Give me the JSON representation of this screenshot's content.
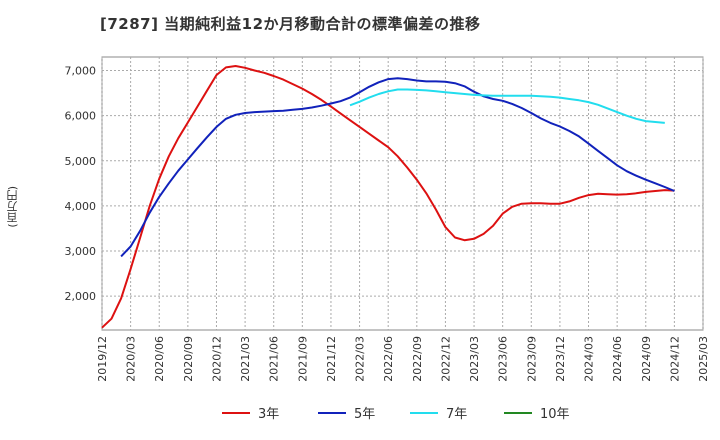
{
  "chart_data": {
    "type": "line",
    "title": "[7287]  当期純利益12か月移動合計の標準偏差の推移",
    "ylabel": "(百万円)",
    "xlabel": "",
    "ylim": [
      1250,
      7300
    ],
    "yticks": [
      2000,
      3000,
      4000,
      5000,
      6000,
      7000
    ],
    "ytick_labels": [
      "2,000",
      "3,000",
      "4,000",
      "5,000",
      "6,000",
      "7,000"
    ],
    "xlim": [
      "2019-12",
      "2025-03"
    ],
    "xticks": [
      "2019/12",
      "2020/03",
      "2020/06",
      "2020/09",
      "2020/12",
      "2021/03",
      "2021/06",
      "2021/09",
      "2021/12",
      "2022/03",
      "2022/06",
      "2022/09",
      "2022/12",
      "2023/03",
      "2023/06",
      "2023/09",
      "2023/12",
      "2024/03",
      "2024/06",
      "2024/09",
      "2024/12",
      "2025/03"
    ],
    "grid": true,
    "legend_position": "bottom",
    "series": [
      {
        "name": "3年",
        "color": "#dd1111",
        "start": "2019-12",
        "values": [
          1300,
          1500,
          1950,
          2600,
          3300,
          4000,
          4600,
          5100,
          5500,
          5850,
          6200,
          6550,
          6900,
          7070,
          7100,
          7060,
          7000,
          6950,
          6880,
          6800,
          6700,
          6600,
          6480,
          6350,
          6200,
          6050,
          5900,
          5750,
          5600,
          5450,
          5300,
          5100,
          4850,
          4580,
          4280,
          3920,
          3530,
          3300,
          3240,
          3270,
          3380,
          3560,
          3830,
          3980,
          4050,
          4060,
          4060,
          4050,
          4050,
          4100,
          4180,
          4240,
          4270,
          4260,
          4250,
          4260,
          4280,
          4310,
          4330,
          4350,
          4340
        ]
      },
      {
        "name": "5年",
        "color": "#1122bb",
        "start": "2020-02",
        "values": [
          2880,
          3100,
          3450,
          3850,
          4200,
          4500,
          4780,
          5030,
          5280,
          5520,
          5750,
          5930,
          6020,
          6060,
          6080,
          6090,
          6100,
          6110,
          6130,
          6150,
          6180,
          6220,
          6270,
          6320,
          6400,
          6520,
          6640,
          6740,
          6810,
          6830,
          6810,
          6780,
          6760,
          6760,
          6750,
          6720,
          6650,
          6530,
          6430,
          6370,
          6330,
          6260,
          6170,
          6060,
          5940,
          5840,
          5760,
          5660,
          5540,
          5380,
          5220,
          5060,
          4900,
          4770,
          4670,
          4580,
          4500,
          4420,
          4330
        ]
      },
      {
        "name": "7年",
        "color": "#22ddee",
        "start": "2022-02",
        "values": [
          6230,
          6310,
          6400,
          6480,
          6540,
          6580,
          6580,
          6570,
          6560,
          6540,
          6520,
          6500,
          6480,
          6460,
          6450,
          6440,
          6440,
          6440,
          6440,
          6440,
          6430,
          6420,
          6400,
          6370,
          6340,
          6300,
          6240,
          6160,
          6080,
          6000,
          5930,
          5880,
          5860,
          5840
        ]
      },
      {
        "name": "10年",
        "color": "#228822",
        "start": "2025-03",
        "values": []
      }
    ]
  }
}
